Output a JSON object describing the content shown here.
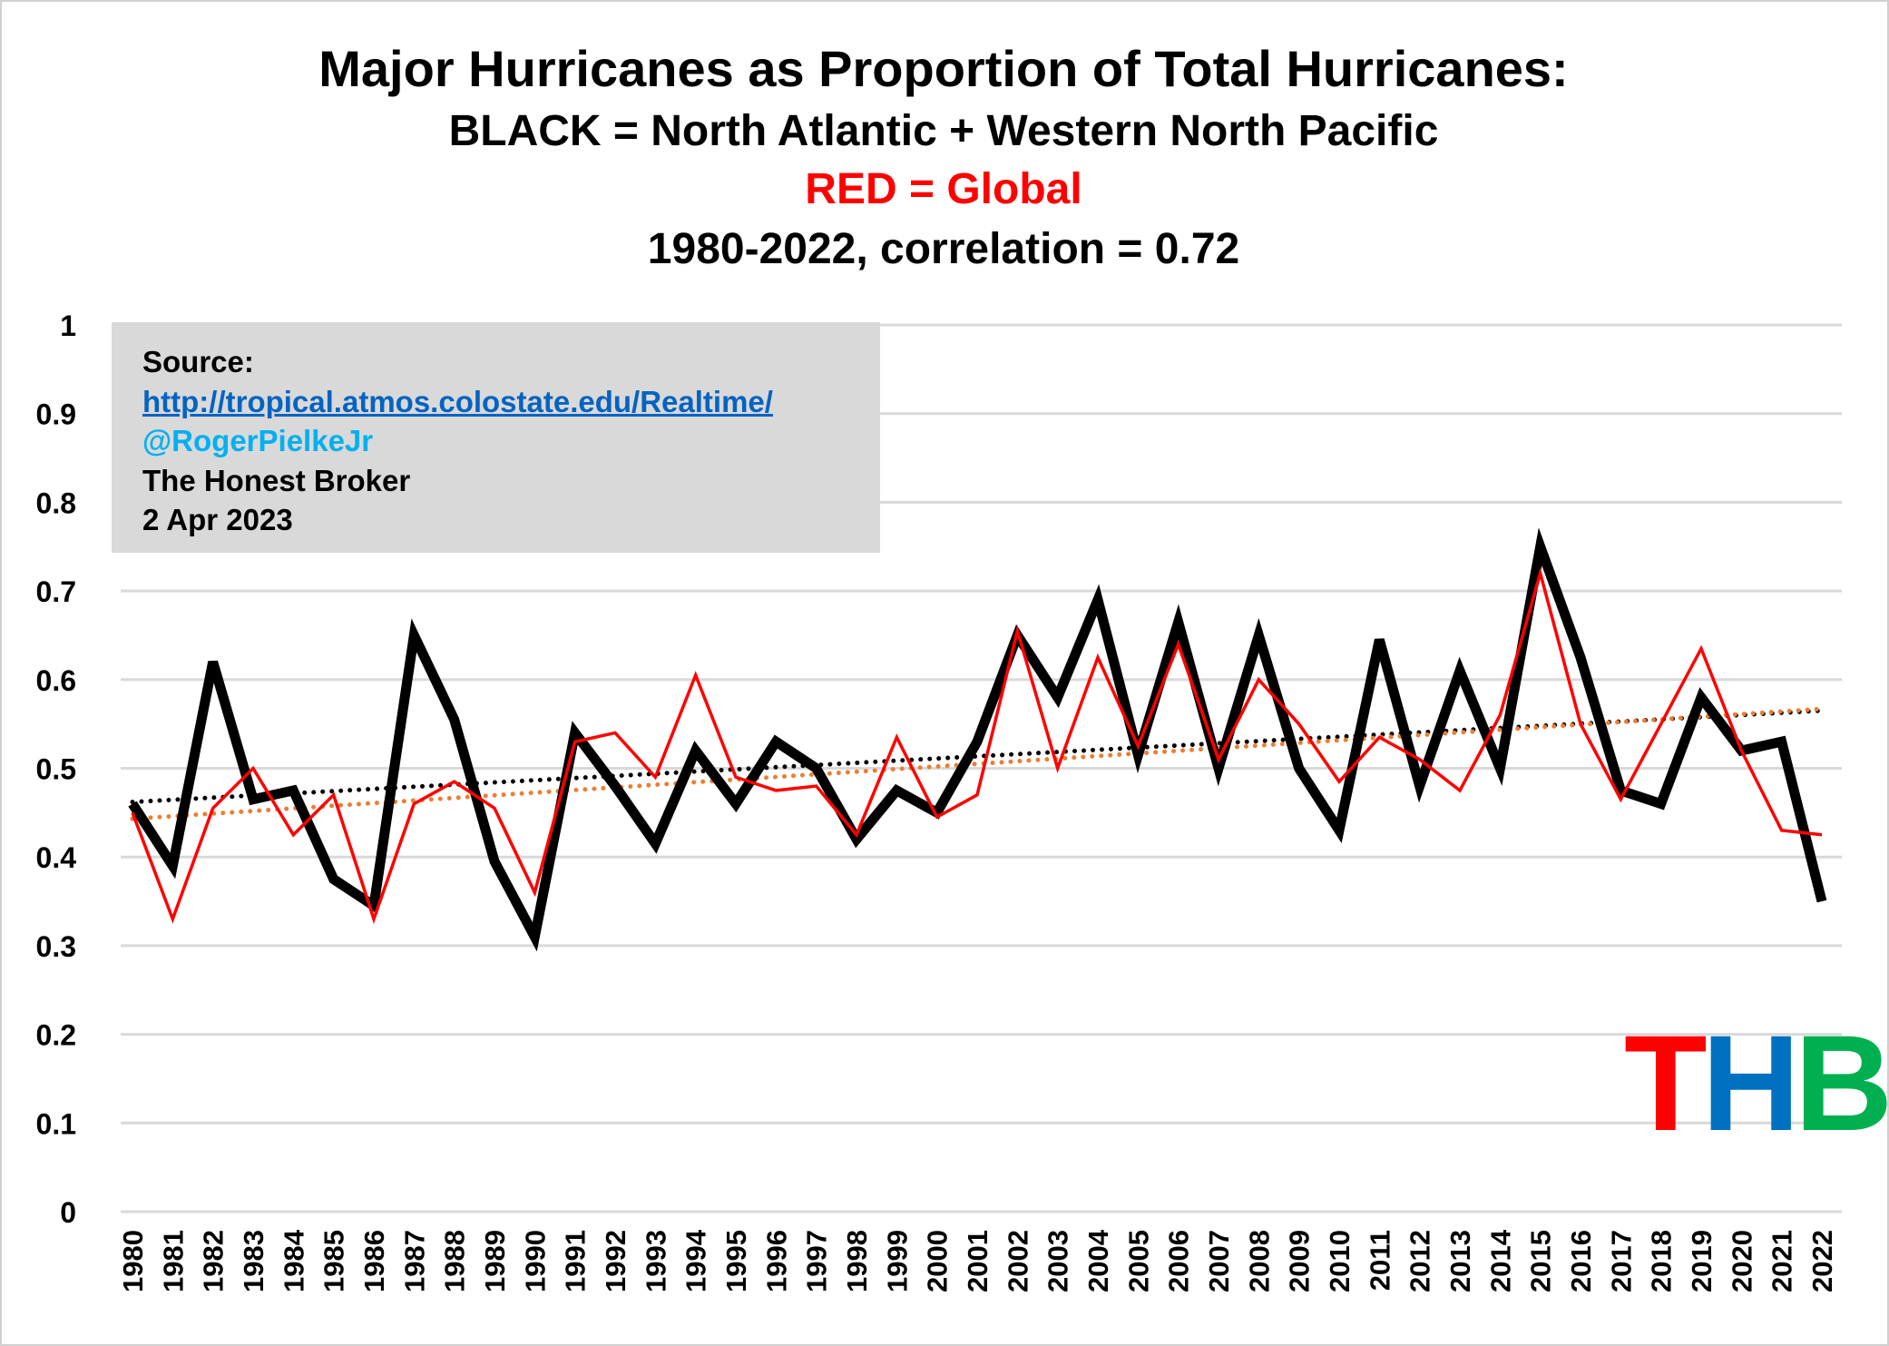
{
  "chart_data": {
    "type": "line",
    "title": "Major Hurricanes as Proportion of Total Hurricanes:",
    "subtitle_black": "BLACK = North Atlantic + Western North Pacific",
    "subtitle_red": "RED = Global",
    "subtitle_period": "1980-2022, correlation = 0.72",
    "xlabel": "",
    "ylabel": "",
    "ylim": [
      0,
      1
    ],
    "yticks": [
      "0",
      "0.1",
      "0.2",
      "0.3",
      "0.4",
      "0.5",
      "0.6",
      "0.7",
      "0.8",
      "0.9",
      "1"
    ],
    "grid": true,
    "x": [
      "1980",
      "1981",
      "1982",
      "1983",
      "1984",
      "1985",
      "1986",
      "1987",
      "1988",
      "1989",
      "1990",
      "1991",
      "1992",
      "1993",
      "1994",
      "1995",
      "1996",
      "1997",
      "1998",
      "1999",
      "2000",
      "2001",
      "2002",
      "2003",
      "2004",
      "2005",
      "2006",
      "2007",
      "2008",
      "2009",
      "2010",
      "2011",
      "2012",
      "2013",
      "2014",
      "2015",
      "2016",
      "2017",
      "2018",
      "2019",
      "2020",
      "2021",
      "2022"
    ],
    "series": [
      {
        "name": "North Atlantic + Western North Pacific",
        "color": "#000000",
        "values": [
          0.46,
          0.39,
          0.62,
          0.465,
          0.475,
          0.375,
          0.345,
          0.65,
          0.555,
          0.395,
          0.31,
          0.54,
          0.48,
          0.415,
          0.52,
          0.46,
          0.53,
          0.5,
          0.42,
          0.475,
          0.45,
          0.53,
          0.65,
          0.58,
          0.69,
          0.515,
          0.665,
          0.5,
          0.65,
          0.5,
          0.43,
          0.645,
          0.48,
          0.61,
          0.5,
          0.75,
          0.625,
          0.475,
          0.46,
          0.58,
          0.52,
          0.53,
          0.35
        ]
      },
      {
        "name": "Global",
        "color": "#ff0000",
        "values": [
          0.45,
          0.33,
          0.455,
          0.5,
          0.425,
          0.47,
          0.33,
          0.46,
          0.485,
          0.455,
          0.36,
          0.53,
          0.54,
          0.49,
          0.605,
          0.49,
          0.475,
          0.48,
          0.425,
          0.535,
          0.445,
          0.47,
          0.655,
          0.5,
          0.625,
          0.525,
          0.64,
          0.51,
          0.6,
          0.55,
          0.485,
          0.535,
          0.51,
          0.475,
          0.56,
          0.72,
          0.55,
          0.465,
          0.55,
          0.635,
          0.52,
          0.43,
          0.425
        ]
      }
    ],
    "trendlines": [
      {
        "name": "Black linear trend",
        "color": "#000000",
        "start": 0.462,
        "end": 0.565
      },
      {
        "name": "Red linear trend",
        "color": "#ed7d31",
        "start": 0.443,
        "end": 0.567
      }
    ]
  },
  "source_box": {
    "label": "Source:",
    "url": "http://tropical.atmos.colostate.edu/Realtime/",
    "handle": "@RogerPielkeJr",
    "publication": "The Honest Broker",
    "date": "2 Apr 2023"
  },
  "logo": {
    "t": "T",
    "h": "H",
    "b": "B",
    "colors": [
      "#ff0000",
      "#0070c0",
      "#00b050"
    ]
  }
}
